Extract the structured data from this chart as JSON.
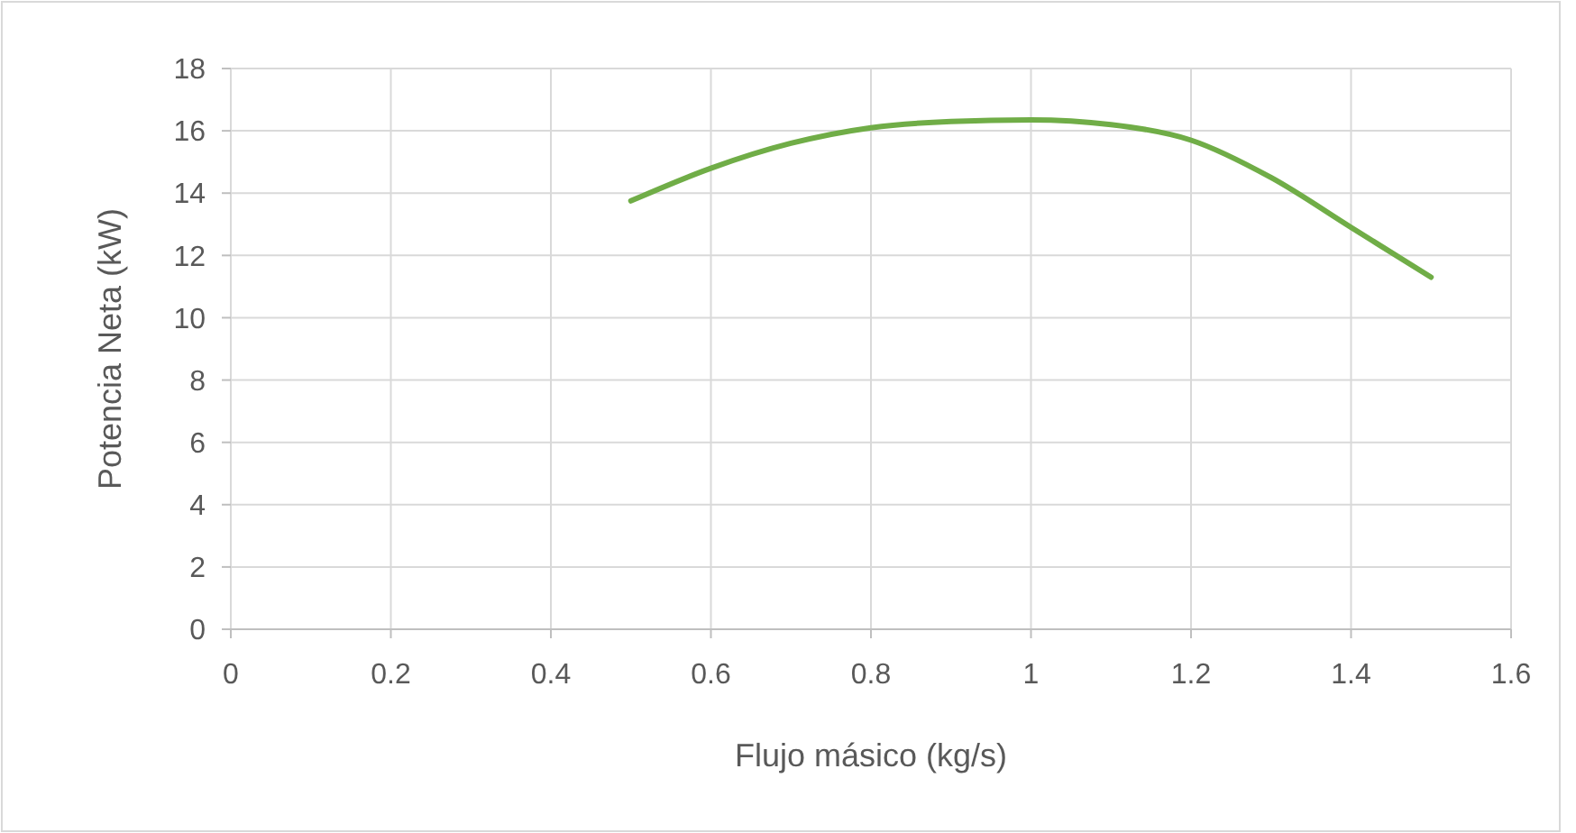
{
  "chart_data": {
    "type": "line",
    "xlabel": "Flujo másico (kg/s)",
    "ylabel": "Potencia Neta (kW)",
    "x": [
      0.5,
      0.6,
      0.7,
      0.8,
      0.9,
      1.0,
      1.1,
      1.2,
      1.3,
      1.4,
      1.5
    ],
    "series": [
      {
        "color": "#70ad47",
        "values": [
          13.75,
          14.8,
          15.6,
          16.1,
          16.3,
          16.35,
          16.2,
          15.7,
          14.5,
          12.9,
          11.3
        ]
      }
    ],
    "xlim": [
      0,
      1.6
    ],
    "xticks": [
      0,
      0.2,
      0.4,
      0.6,
      0.8,
      1,
      1.2,
      1.4,
      1.6
    ],
    "ylim": [
      0,
      18
    ],
    "yticks": [
      0,
      2,
      4,
      6,
      8,
      10,
      12,
      14,
      16,
      18
    ],
    "grid": true,
    "marker": "none",
    "line_style": "solid"
  }
}
